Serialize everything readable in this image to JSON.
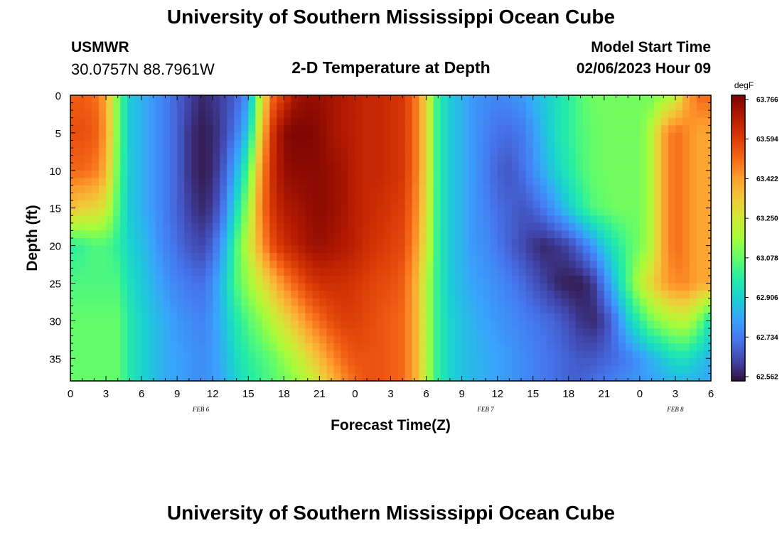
{
  "header": {
    "title": "University of Southern Mississippi Ocean Cube",
    "station": "USMWR",
    "coords": "30.0757N  88.7961W",
    "plot_title": "2-D Temperature at Depth",
    "start_label": "Model Start Time",
    "start_value": "02/06/2023 Hour 09"
  },
  "footer": {
    "title": "University of Southern Mississippi Ocean Cube"
  },
  "chart_data": {
    "type": "heatmap",
    "title": "2-D Temperature at Depth",
    "xlabel": "Forecast Time(Z)",
    "ylabel": "Depth (ft)",
    "x_ticks": [
      "0",
      "3",
      "6",
      "9",
      "12",
      "15",
      "18",
      "21",
      "0",
      "3",
      "6",
      "9",
      "12",
      "15",
      "18",
      "21",
      "0",
      "3",
      "6"
    ],
    "date_labels": [
      {
        "label": "FEB 6",
        "hour_offset": 11
      },
      {
        "label": "FEB 7",
        "hour_offset": 35
      },
      {
        "label": "FEB 8",
        "hour_offset": 51
      }
    ],
    "x_range_hours": [
      0,
      54
    ],
    "y_ticks": [
      0,
      5,
      10,
      15,
      20,
      25,
      30,
      35
    ],
    "y_range": [
      0,
      38
    ],
    "colorbar": {
      "unit": "degF",
      "min": 62.562,
      "max": 63.766,
      "ticks": [
        "63.766",
        "63.594",
        "63.422",
        "63.250",
        "63.078",
        "62.906",
        "62.734",
        "62.562"
      ],
      "colors": [
        "#30123b",
        "#4145ab",
        "#4675ed",
        "#39a2fc",
        "#1bcfd4",
        "#24eca6",
        "#61fc6c",
        "#a4fc3b",
        "#d1e834",
        "#f3c63a",
        "#fe9b2d",
        "#f36315",
        "#d93806",
        "#b11901",
        "#7a0403"
      ]
    },
    "grid_x": [
      0,
      1,
      2,
      3,
      4,
      5,
      6,
      7,
      8,
      9,
      10,
      11,
      12,
      13,
      14,
      15,
      16,
      17,
      18,
      19,
      20,
      21,
      22,
      23,
      24,
      25,
      26,
      27,
      28,
      29,
      30,
      31,
      32,
      33,
      34,
      35,
      36,
      37,
      38,
      39,
      40,
      41,
      42,
      43,
      44,
      45,
      46,
      47,
      48,
      49,
      50,
      51,
      52,
      53,
      54
    ],
    "grid_depths": [
      0,
      5,
      10,
      15,
      20,
      25,
      30,
      35,
      38
    ],
    "values": [
      [
        63.52,
        63.52,
        63.5,
        63.4,
        63.1,
        62.9,
        62.85,
        62.8,
        62.75,
        62.7,
        62.65,
        62.6,
        62.62,
        62.65,
        62.7,
        62.8,
        63.2,
        63.5,
        63.6,
        63.7,
        63.72,
        63.72,
        63.7,
        63.68,
        63.66,
        63.64,
        63.64,
        63.62,
        63.6,
        63.5,
        63.3,
        63.0,
        62.9,
        62.85,
        62.8,
        62.78,
        62.76,
        62.78,
        62.8,
        62.85,
        62.9,
        62.95,
        63.0,
        63.05,
        63.1,
        63.1,
        63.1,
        63.1,
        63.1,
        63.1,
        63.15,
        63.2,
        63.4,
        63.5,
        63.5
      ],
      [
        63.55,
        63.55,
        63.53,
        63.42,
        63.1,
        62.9,
        62.85,
        62.8,
        62.75,
        62.7,
        62.62,
        62.58,
        62.6,
        62.65,
        62.75,
        62.9,
        63.3,
        63.6,
        63.74,
        63.76,
        63.76,
        63.74,
        63.7,
        63.68,
        63.66,
        63.64,
        63.64,
        63.62,
        63.6,
        63.5,
        63.3,
        63.0,
        62.9,
        62.85,
        62.8,
        62.76,
        62.73,
        62.72,
        62.74,
        62.8,
        62.88,
        62.95,
        63.0,
        63.05,
        63.08,
        63.1,
        63.1,
        63.1,
        63.1,
        63.2,
        63.4,
        63.5,
        63.45,
        63.4,
        63.4
      ],
      [
        63.5,
        63.5,
        63.48,
        63.38,
        63.08,
        62.9,
        62.85,
        62.8,
        62.75,
        62.7,
        62.62,
        62.58,
        62.6,
        62.7,
        62.85,
        63.05,
        63.4,
        63.62,
        63.72,
        63.74,
        63.74,
        63.74,
        63.72,
        63.7,
        63.66,
        63.64,
        63.64,
        63.62,
        63.6,
        63.5,
        63.3,
        63.0,
        62.9,
        62.85,
        62.8,
        62.75,
        62.7,
        62.68,
        62.72,
        62.78,
        62.85,
        62.92,
        62.98,
        63.04,
        63.08,
        63.1,
        63.1,
        63.1,
        63.1,
        63.2,
        63.4,
        63.5,
        63.45,
        63.4,
        63.4
      ],
      [
        63.35,
        63.32,
        63.3,
        63.25,
        63.05,
        62.9,
        62.85,
        62.8,
        62.75,
        62.7,
        62.64,
        62.6,
        62.63,
        62.75,
        62.95,
        63.15,
        63.45,
        63.6,
        63.68,
        63.7,
        63.72,
        63.74,
        63.72,
        63.7,
        63.66,
        63.64,
        63.62,
        63.6,
        63.58,
        63.48,
        63.28,
        63.0,
        62.9,
        62.85,
        62.8,
        62.76,
        62.72,
        62.7,
        62.68,
        62.7,
        62.75,
        62.82,
        62.9,
        62.98,
        63.05,
        63.08,
        63.1,
        63.1,
        63.1,
        63.2,
        63.4,
        63.5,
        63.45,
        63.4,
        63.4
      ],
      [
        63.0,
        63.02,
        63.05,
        63.05,
        63.0,
        62.92,
        62.88,
        62.82,
        62.76,
        62.72,
        62.68,
        62.65,
        62.7,
        62.85,
        63.05,
        63.22,
        63.4,
        63.55,
        63.62,
        63.66,
        63.7,
        63.72,
        63.7,
        63.68,
        63.66,
        63.62,
        63.6,
        63.58,
        63.56,
        63.45,
        63.25,
        63.0,
        62.9,
        62.85,
        62.8,
        62.78,
        62.74,
        62.7,
        62.66,
        62.62,
        62.6,
        62.62,
        62.65,
        62.72,
        62.8,
        62.9,
        62.98,
        63.05,
        63.1,
        63.2,
        63.4,
        63.5,
        63.45,
        63.4,
        63.4
      ],
      [
        63.05,
        63.05,
        63.05,
        63.05,
        63.05,
        62.95,
        62.9,
        62.85,
        62.8,
        62.76,
        62.74,
        62.72,
        62.78,
        62.9,
        63.05,
        63.15,
        63.25,
        63.35,
        63.45,
        63.52,
        63.58,
        63.62,
        63.62,
        63.62,
        63.6,
        63.58,
        63.56,
        63.55,
        63.52,
        63.4,
        63.2,
        63.0,
        62.9,
        62.86,
        62.82,
        62.8,
        62.78,
        62.75,
        62.72,
        62.68,
        62.64,
        62.6,
        62.58,
        62.58,
        62.62,
        62.75,
        62.9,
        63.05,
        63.2,
        63.3,
        63.4,
        63.45,
        63.45,
        63.4,
        63.4
      ],
      [
        63.08,
        63.08,
        63.08,
        63.08,
        63.08,
        62.98,
        62.92,
        62.88,
        62.84,
        62.8,
        62.78,
        62.76,
        62.8,
        62.88,
        62.98,
        63.06,
        63.12,
        63.2,
        63.28,
        63.36,
        63.44,
        63.5,
        63.55,
        63.58,
        63.58,
        63.56,
        63.54,
        63.52,
        63.5,
        63.4,
        63.2,
        63.0,
        62.92,
        62.88,
        62.85,
        62.82,
        62.8,
        62.78,
        62.76,
        62.74,
        62.72,
        62.7,
        62.66,
        62.62,
        62.6,
        62.64,
        62.75,
        62.9,
        63.0,
        63.1,
        63.15,
        63.2,
        63.2,
        63.1,
        62.95
      ],
      [
        63.08,
        63.08,
        63.08,
        63.08,
        63.08,
        62.98,
        62.92,
        62.88,
        62.84,
        62.82,
        62.8,
        62.78,
        62.8,
        62.86,
        62.94,
        63.0,
        63.04,
        63.08,
        63.14,
        63.2,
        63.28,
        63.36,
        63.44,
        63.5,
        63.54,
        63.54,
        63.54,
        63.52,
        63.5,
        63.4,
        63.2,
        63.0,
        62.92,
        62.88,
        62.86,
        62.84,
        62.82,
        62.8,
        62.78,
        62.76,
        62.74,
        62.72,
        62.7,
        62.68,
        62.68,
        62.7,
        62.72,
        62.75,
        62.8,
        62.85,
        62.9,
        62.95,
        62.95,
        62.9,
        62.85
      ],
      [
        63.08,
        63.08,
        63.08,
        63.08,
        63.08,
        62.98,
        62.92,
        62.88,
        62.84,
        62.82,
        62.8,
        62.78,
        62.8,
        62.85,
        62.92,
        62.98,
        63.02,
        63.06,
        63.1,
        63.14,
        63.2,
        63.28,
        63.36,
        63.44,
        63.5,
        63.54,
        63.54,
        63.52,
        63.5,
        63.4,
        63.2,
        63.0,
        62.92,
        62.88,
        62.86,
        62.84,
        62.82,
        62.8,
        62.78,
        62.76,
        62.74,
        62.72,
        62.7,
        62.7,
        62.72,
        62.74,
        62.76,
        62.78,
        62.8,
        62.82,
        62.84,
        62.86,
        62.86,
        62.84,
        62.82
      ]
    ]
  }
}
